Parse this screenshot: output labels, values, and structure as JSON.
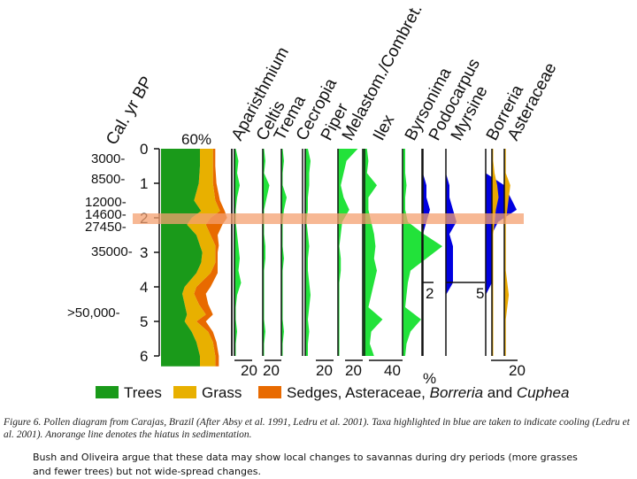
{
  "chart_data": {
    "type": "area",
    "title": "Pollen diagram from Carajas, Brazil",
    "y_axis_label": "Cal. yr BP",
    "depth_ticks": [
      "0",
      "1",
      "2",
      "3",
      "4",
      "5",
      "6"
    ],
    "age_labels": [
      "3000-",
      "8500-",
      "12000-",
      "14600-",
      "27450-",
      "35000-",
      ">50,000-"
    ],
    "main_panel": {
      "header": "60%",
      "depth": [
        0,
        0.5,
        1,
        1.5,
        1.8,
        2,
        2.2,
        2.5,
        2.8,
        3,
        3.3,
        3.6,
        4,
        4.2,
        4.5,
        4.8,
        5,
        5.3,
        5.6,
        6,
        6.3
      ],
      "trees": [
        33,
        33,
        32,
        28,
        34,
        26,
        22,
        30,
        33,
        35,
        34,
        30,
        20,
        18,
        20,
        22,
        20,
        26,
        30,
        33,
        33
      ],
      "grass": [
        44,
        44,
        44,
        46,
        50,
        42,
        38,
        42,
        46,
        46,
        46,
        42,
        30,
        28,
        32,
        38,
        30,
        40,
        44,
        46,
        46
      ],
      "sedges": [
        46,
        46,
        47,
        50,
        54,
        56,
        52,
        48,
        49,
        48,
        48,
        48,
        42,
        38,
        40,
        44,
        38,
        44,
        47,
        49,
        49
      ]
    },
    "taxa": [
      {
        "name": "Aparisthmium",
        "color": "#22e23a",
        "values": [
          1,
          3,
          2,
          4,
          2,
          1,
          1,
          2,
          3,
          4,
          3,
          5,
          2,
          1,
          1,
          2,
          1,
          1
        ]
      },
      {
        "name": "Celtis",
        "color": "#22e23a",
        "values": [
          1,
          2,
          1,
          5,
          3,
          1,
          1,
          1,
          2,
          2,
          1,
          1,
          1,
          1,
          1,
          2,
          1,
          1
        ]
      },
      {
        "name": "Trema",
        "color": "#22e23a",
        "values": [
          1,
          2,
          1,
          1,
          4,
          2,
          1,
          1,
          1,
          2,
          1,
          1,
          1,
          1,
          1,
          2,
          1,
          1
        ]
      },
      {
        "name": "Cecropia",
        "color": "#22e23a",
        "values": [
          2,
          4,
          3,
          3,
          2,
          2,
          1,
          2,
          3,
          2,
          2,
          3,
          4,
          3,
          2,
          3,
          2,
          2
        ]
      },
      {
        "name": "Piper",
        "color": "#22e23a",
        "values": [
          14,
          6,
          4,
          2,
          4,
          8,
          3,
          2,
          1,
          2,
          2,
          1,
          1,
          1,
          1,
          1,
          1,
          1
        ]
      },
      {
        "name": "Melastom./Combret.",
        "color": "#22e23a",
        "values": [
          3,
          4,
          3,
          10,
          4,
          4,
          6,
          8,
          9,
          8,
          10,
          8,
          6,
          4,
          14,
          6,
          5,
          8
        ]
      },
      {
        "name": "Ilex",
        "color": "#22e23a",
        "values": [
          2,
          2,
          2,
          3,
          2,
          2,
          4,
          16,
          30,
          18,
          6,
          4,
          3,
          2,
          14,
          6,
          3,
          2
        ]
      },
      {
        "name": "Byrsonima",
        "color": "#0000e0",
        "values": [
          0,
          0,
          0,
          1,
          1,
          2,
          1,
          0,
          0,
          0,
          0,
          0,
          0,
          0,
          0,
          0,
          0,
          0
        ]
      },
      {
        "name": "Podocarpus",
        "color": "#0000e0",
        "values": [
          0,
          0,
          0,
          1,
          1,
          2,
          3,
          1,
          2,
          2,
          2,
          2,
          0,
          0,
          0,
          0,
          0,
          0
        ]
      },
      {
        "name": "Myrsine",
        "color": "#0000e0",
        "values": [
          0,
          0,
          0,
          3,
          4,
          5,
          2,
          1,
          1,
          1,
          1,
          1,
          0,
          0,
          0,
          0,
          0,
          0
        ]
      },
      {
        "name": "Borreria",
        "color": "#e8a800",
        "values": [
          1,
          1,
          2,
          4,
          5,
          3,
          2,
          1,
          1,
          1,
          1,
          1,
          1,
          1,
          1,
          1,
          1,
          1
        ]
      },
      {
        "name": "Asteraceae",
        "color": "#e8a800",
        "values": [
          1,
          1,
          1,
          4,
          3,
          2,
          1,
          1,
          1,
          1,
          1,
          2,
          3,
          2,
          1,
          1,
          1,
          1
        ]
      }
    ],
    "scale_labels": [
      "20",
      "20",
      "20",
      "20",
      "40",
      "2",
      "5",
      "20"
    ],
    "percent_label": "%",
    "hiatus_color": "#f4a070",
    "series_colors": {
      "trees": "#1a9a1a",
      "grass": "#e8b000",
      "sedges": "#e86a00"
    }
  },
  "legend": {
    "trees": "Trees",
    "grass": "Grass",
    "sedges_prefix": "Sedges, Asteraceae, ",
    "borreria": "Borreria",
    "and": " and ",
    "cuphea": "Cuphea"
  },
  "caption": "Figure 6. Pollen diagram from Carajas, Brazil (After Absy et al. 1991, Ledru et al. 2001). Taxa highlighted in blue are taken to indicate cooling (Ledru et al. 2001). Anorange line denotes the hiatus in sedimentation.",
  "note": "Bush and Oliveira argue that these data may show local changes to savannas during dry periods (more grasses and fewer trees) but not wide-spread changes."
}
